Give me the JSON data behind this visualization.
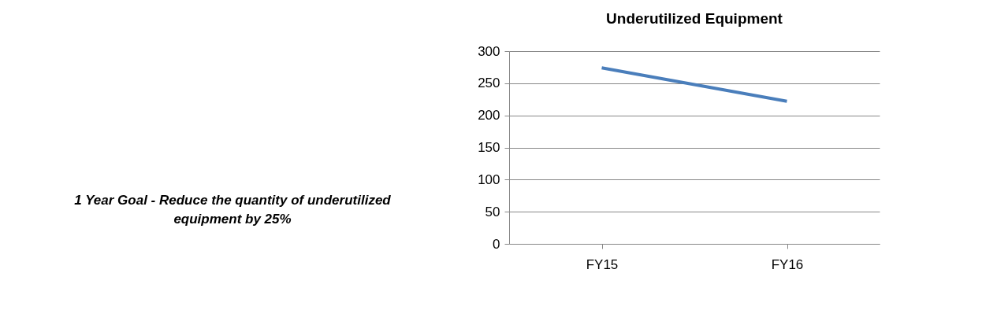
{
  "chart_data": {
    "type": "line",
    "title": "Underutilized Equipment",
    "annotations": [
      "1 Year Goal - Reduce the quantity of underutilized equipment by 25%"
    ],
    "categories": [
      "FY15",
      "FY16"
    ],
    "series": [
      {
        "color": "#4a7ebb",
        "values": [
          274,
          222
        ]
      }
    ],
    "ylim": [
      0,
      300
    ],
    "yticks": [
      0,
      50,
      100,
      150,
      200,
      250,
      300
    ],
    "grid": "y",
    "legend": false,
    "marker": "none",
    "line_style": "solid"
  }
}
